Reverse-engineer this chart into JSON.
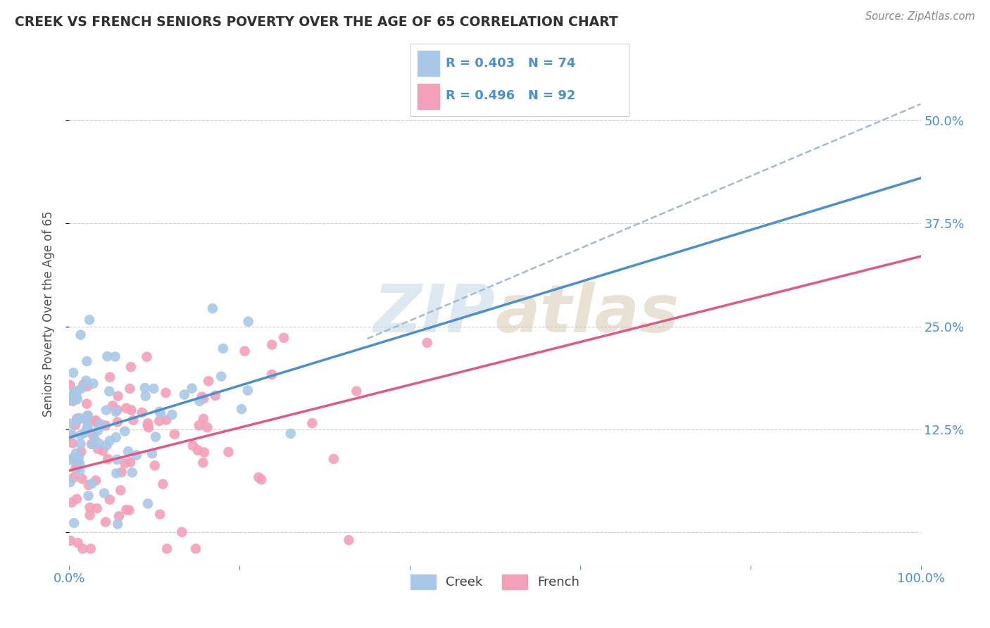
{
  "title": "CREEK VS FRENCH SENIORS POVERTY OVER THE AGE OF 65 CORRELATION CHART",
  "source": "Source: ZipAtlas.com",
  "ylabel": "Seniors Poverty Over the Age of 65",
  "xlim": [
    0.0,
    1.0
  ],
  "ylim": [
    -0.04,
    0.57
  ],
  "ytick_vals": [
    0.0,
    0.125,
    0.25,
    0.375,
    0.5
  ],
  "creek_color": "#a8c8e8",
  "french_color": "#f4a0b8",
  "creek_line_color": "#4a90d0",
  "french_line_color": "#e05888",
  "dashed_line_color": "#a0bcd0",
  "title_color": "#303030",
  "axis_label_color": "#505050",
  "tick_color": "#4a8fd0",
  "watermark_color": "#c8dae8",
  "R_creek": 0.403,
  "N_creek": 74,
  "R_french": 0.496,
  "N_french": 92,
  "creek_line_x0": 0.0,
  "creek_line_y0": 0.115,
  "creek_line_x1": 1.0,
  "creek_line_y1": 0.43,
  "french_line_x0": 0.0,
  "french_line_y0": 0.075,
  "french_line_x1": 1.0,
  "french_line_y1": 0.335,
  "dashed_line_x0": 0.35,
  "dashed_line_y0": 0.235,
  "dashed_line_x1": 1.0,
  "dashed_line_y1": 0.52
}
